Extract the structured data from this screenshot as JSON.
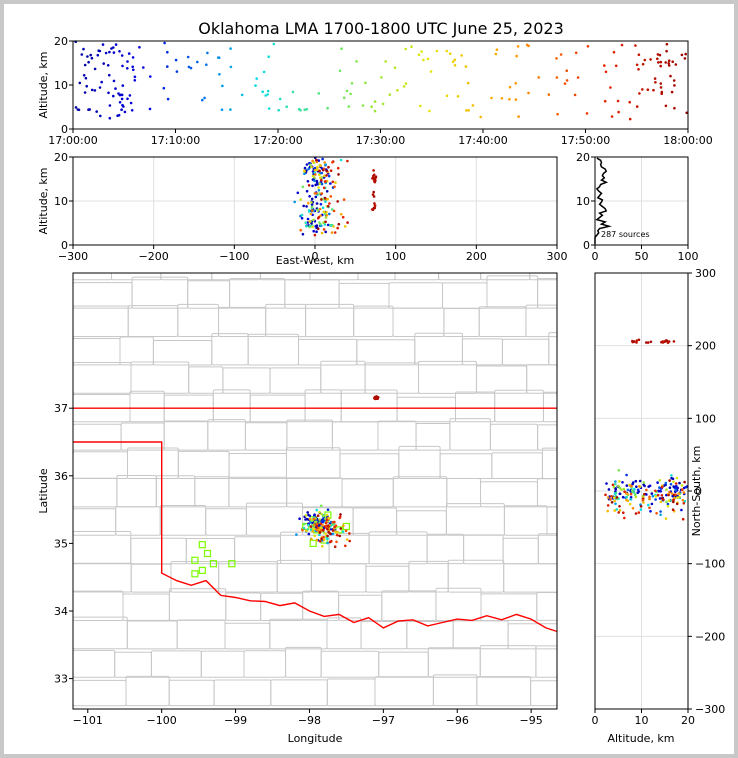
{
  "title": "Oklahoma LMA 1700-1800 UTC June 25, 2023",
  "chart_data": [
    {
      "panel": "time-altitude",
      "type": "scatter",
      "ylabel": "Altitude, km",
      "xlabel": "",
      "xticks": [
        "17:00:00",
        "17:10:00",
        "17:20:00",
        "17:30:00",
        "17:40:00",
        "17:50:00",
        "18:00:00"
      ],
      "yticks": [
        "0",
        "10",
        "20"
      ],
      "xlim_minutes": [
        0,
        60
      ],
      "ylim": [
        0,
        20
      ],
      "color_by": "time",
      "points_note": "points colored from blue (17:00) through cyan, green, yellow, orange to dark red (18:00)"
    },
    {
      "panel": "east-west-altitude",
      "type": "scatter",
      "xlabel": "East-West, km",
      "ylabel": "Altitude, km",
      "xticks": [
        "−300",
        "−200",
        "−100",
        "0",
        "100",
        "200",
        "300"
      ],
      "yticks": [
        "0",
        "10",
        "20"
      ],
      "xlim": [
        -300,
        300
      ],
      "ylim": [
        0,
        20
      ]
    },
    {
      "panel": "altitude-histogram",
      "type": "line",
      "xticks": [
        "0",
        "50",
        "100"
      ],
      "yticks": [
        "0",
        "10",
        "20"
      ],
      "xlim": [
        0,
        100
      ],
      "ylim": [
        0,
        20
      ],
      "annotation": "287 sources"
    },
    {
      "panel": "plan-view-map",
      "type": "scatter",
      "xlabel": "Longitude",
      "ylabel": "Latitude",
      "xticks": [
        "−101",
        "−100",
        "−99",
        "−98",
        "−97",
        "−96",
        "−95"
      ],
      "yticks": [
        "33",
        "34",
        "35",
        "36",
        "37"
      ],
      "xlim": [
        -101.2,
        -94.65
      ],
      "ylim": [
        32.55,
        39.0
      ],
      "station_color": "#7CFC00",
      "boundary_color": "#ff0000",
      "county_color": "#c8c8c8"
    },
    {
      "panel": "north-south-altitude",
      "type": "scatter",
      "xlabel": "Altitude, km",
      "ylabel": "North-South, km",
      "xticks": [
        "0",
        "10",
        "20"
      ],
      "yticks": [
        "−300",
        "−200",
        "−100",
        "0",
        "100",
        "200",
        "300"
      ],
      "xlim": [
        0,
        20
      ],
      "ylim": [
        -300,
        300
      ]
    }
  ]
}
